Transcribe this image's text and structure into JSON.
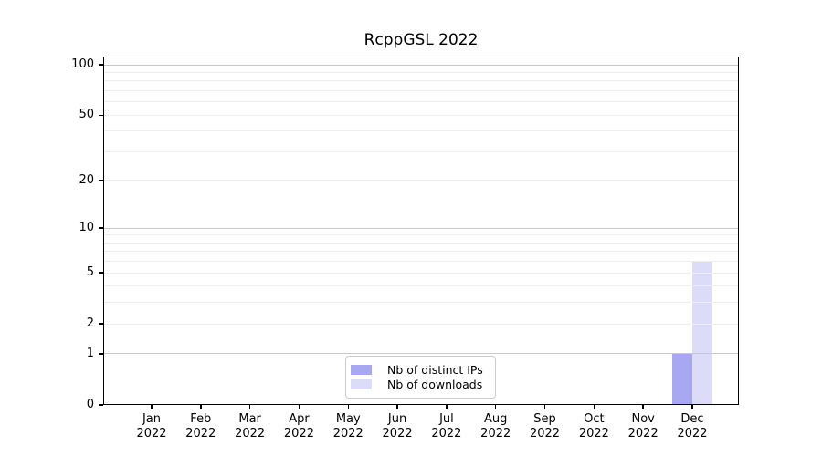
{
  "chart_data": {
    "type": "bar",
    "title": "RcppGSL 2022",
    "categories": [
      "Jan",
      "Feb",
      "Mar",
      "Apr",
      "May",
      "Jun",
      "Jul",
      "Aug",
      "Sep",
      "Oct",
      "Nov",
      "Dec"
    ],
    "x_tick_year": "2022",
    "series": [
      {
        "name": "Nb of distinct IPs",
        "color": "#a8a8f2",
        "values": [
          0,
          0,
          0,
          0,
          0,
          0,
          0,
          0,
          0,
          0,
          0,
          1
        ]
      },
      {
        "name": "Nb of downloads",
        "color": "#dcdcf8",
        "values": [
          0,
          0,
          0,
          0,
          0,
          0,
          0,
          0,
          0,
          0,
          0,
          6
        ]
      }
    ],
    "yticks": [
      0,
      1,
      2,
      5,
      10,
      20,
      50,
      100
    ],
    "ylim": [
      0,
      112
    ],
    "scale": "log1p",
    "grid": {
      "major_values": [
        1,
        10,
        100
      ],
      "minor_values": [
        2,
        3,
        4,
        5,
        6,
        7,
        8,
        9,
        20,
        30,
        40,
        50,
        60,
        70,
        80,
        90
      ]
    },
    "legend": {
      "position": "bottom-center",
      "entries": [
        "Nb of distinct IPs",
        "Nb of downloads"
      ]
    },
    "colors": {
      "axis": "#000000",
      "grid_major": "#c9c9c9",
      "grid_minor": "#ededed",
      "legend_border": "#cccccc",
      "background": "#ffffff",
      "text": "#000000"
    }
  }
}
